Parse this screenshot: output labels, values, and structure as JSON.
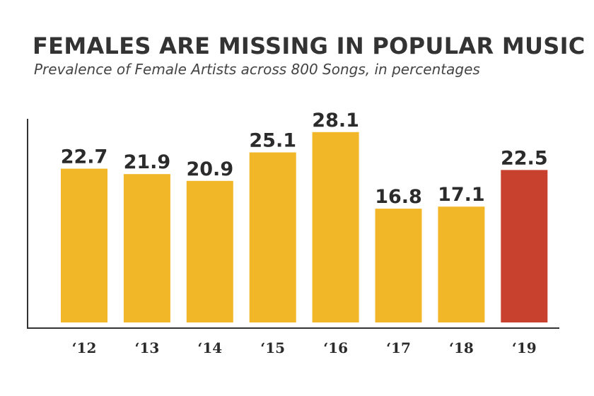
{
  "chart_data": {
    "type": "bar",
    "title": "FEMALES ARE MISSING IN POPULAR MUSIC",
    "subtitle": "Prevalence of Female Artists across 800 Songs, in percentages",
    "categories": [
      "‘12",
      "‘13",
      "‘14",
      "‘15",
      "‘16",
      "‘17",
      "‘18",
      "‘19"
    ],
    "values": [
      22.7,
      21.9,
      20.9,
      25.1,
      28.1,
      16.8,
      17.1,
      22.5
    ],
    "value_labels": [
      "22.7",
      "21.9",
      "20.9",
      "25.1",
      "28.1",
      "16.8",
      "17.1",
      "22.5"
    ],
    "colors": [
      "#F2B728",
      "#F2B728",
      "#F2B728",
      "#F2B728",
      "#F2B728",
      "#F2B728",
      "#F2B728",
      "#C8412F"
    ],
    "xlabel": "",
    "ylabel": "",
    "ylim": [
      0,
      30
    ],
    "grid": false,
    "legend": "none"
  }
}
